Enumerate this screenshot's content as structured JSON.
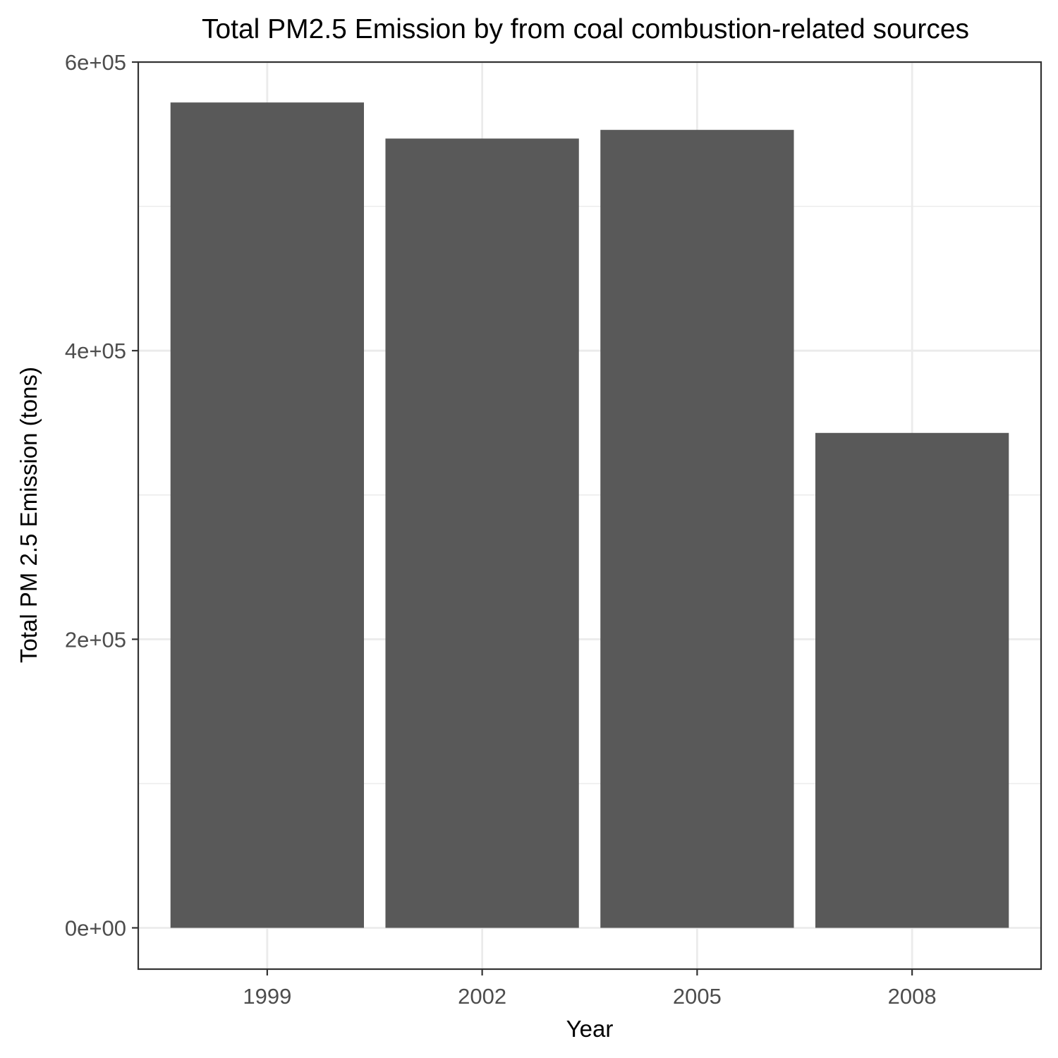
{
  "chart_data": {
    "type": "bar",
    "title": "Total PM2.5 Emission by from coal combustion-related sources",
    "xlabel": "Year",
    "ylabel": "Total PM 2.5 Emission (tons)",
    "categories": [
      "1999",
      "2002",
      "2005",
      "2008"
    ],
    "values": [
      572000,
      547000,
      553000,
      343000
    ],
    "ylim": [
      -28600,
      600000
    ],
    "yticks": [
      0,
      200000,
      400000,
      600000
    ],
    "ytick_labels": [
      "0e+00",
      "2e+05",
      "4e+05",
      "6e+05"
    ],
    "grid": true,
    "legend": "none",
    "bar_color": "#595959",
    "grid_color": "#ebebeb",
    "panel_border_color": "#333333"
  }
}
